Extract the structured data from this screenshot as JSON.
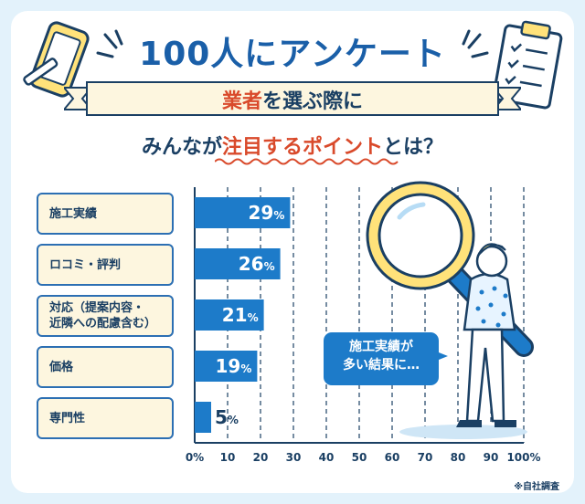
{
  "header": {
    "title": "100人にアンケート",
    "ribbon_hl": "業者",
    "ribbon_rest": "を選ぶ際に",
    "sub_pre": "みんなが",
    "sub_hl": "注目するポイント",
    "sub_post": "とは？"
  },
  "chart_data": {
    "type": "bar",
    "orientation": "horizontal",
    "categories": [
      "施工実績",
      "ロコミ・評判",
      "対応（提案内容・\n近隣への配慮含む）",
      "価格",
      "専門性"
    ],
    "values": [
      29,
      26,
      21,
      19,
      5
    ],
    "value_suffix": "%",
    "xlim": [
      0,
      100
    ],
    "ticks": [
      "0%",
      "10",
      "20",
      "30",
      "40",
      "50",
      "60",
      "70",
      "80",
      "90",
      "100%"
    ],
    "bar_color": "#1d7bc9",
    "grid": true
  },
  "callout": {
    "line1": "施工実績が",
    "line2": "多い結果に…"
  },
  "footnote": "※自社調査",
  "colors": {
    "background": "#e3f2fb",
    "accent": "#1a5fa8",
    "highlight": "#d94a2b",
    "label_bg": "#fdf6df"
  }
}
